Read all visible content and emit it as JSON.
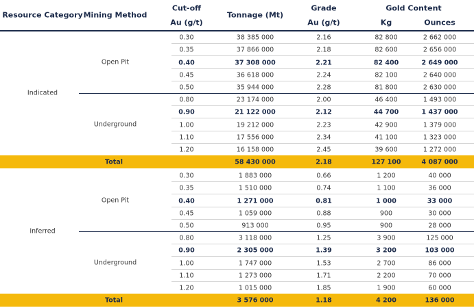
{
  "header": {
    "resource_category": "Resource Category",
    "mining_method": "Mining Method",
    "cutoff": "Cut-off",
    "cutoff_unit": "Au (g/t)",
    "tonnage": "Tonnage (Mt)",
    "grade": "Grade",
    "grade_unit": "Au (g/t)",
    "gold_content": "Gold Content",
    "kg": "Kg",
    "ounces": "Ounces"
  },
  "sections": [
    {
      "category": "Indicated",
      "groups": [
        {
          "method": "Open Pit",
          "bold_row": 2,
          "rows": [
            [
              "0.30",
              "38 385 000",
              "2.16",
              "82 800",
              "2 662 000"
            ],
            [
              "0.35",
              "37 866 000",
              "2.18",
              "82 600",
              "2 656 000"
            ],
            [
              "0.40",
              "37 308 000",
              "2.21",
              "82 400",
              "2 649 000"
            ],
            [
              "0.45",
              "36 618 000",
              "2.24",
              "82 100",
              "2 640 000"
            ],
            [
              "0.50",
              "35 944 000",
              "2.28",
              "81 800",
              "2 630 000"
            ]
          ]
        },
        {
          "method": "Underground",
          "bold_row": 1,
          "rows": [
            [
              "0.80",
              "23 174 000",
              "2.00",
              "46 400",
              "1 493 000"
            ],
            [
              "0.90",
              "21 122 000",
              "2.12",
              "44 700",
              "1 437 000"
            ],
            [
              "1.00",
              "19 212 000",
              "2.23",
              "42 900",
              "1 379 000"
            ],
            [
              "1.10",
              "17 556 000",
              "2.34",
              "41 100",
              "1 323 000"
            ],
            [
              "1.20",
              "16 158 000",
              "2.45",
              "39 600",
              "1 272 000"
            ]
          ]
        }
      ],
      "total": {
        "label": "Total",
        "values": [
          "58 430 000",
          "2.18",
          "127 100",
          "4 087 000"
        ]
      }
    },
    {
      "category": "Inferred",
      "groups": [
        {
          "method": "Open Pit",
          "bold_row": 2,
          "rows": [
            [
              "0.30",
              "1 883 000",
              "0.66",
              "1 200",
              "40 000"
            ],
            [
              "0.35",
              "1 510 000",
              "0.74",
              "1 100",
              "36 000"
            ],
            [
              "0.40",
              "1 271 000",
              "0.81",
              "1 000",
              "33 000"
            ],
            [
              "0.45",
              "1 059 000",
              "0.88",
              "900",
              "30 000"
            ],
            [
              "0.50",
              "913 000",
              "0.95",
              "900",
              "28 000"
            ]
          ]
        },
        {
          "method": "Underground",
          "bold_row": 1,
          "rows": [
            [
              "0.80",
              "3 118 000",
              "1.25",
              "3 900",
              "125 000"
            ],
            [
              "0.90",
              "2 305 000",
              "1.39",
              "3 200",
              "103 000"
            ],
            [
              "1.00",
              "1 747 000",
              "1.53",
              "2 700",
              "86 000"
            ],
            [
              "1.10",
              "1 273 000",
              "1.71",
              "2 200",
              "70 000"
            ],
            [
              "1.20",
              "1 015 000",
              "1.85",
              "1 900",
              "60 000"
            ]
          ]
        }
      ],
      "total": {
        "label": "Total",
        "values": [
          "3 576 000",
          "1.18",
          "4 200",
          "136 000"
        ]
      }
    }
  ]
}
